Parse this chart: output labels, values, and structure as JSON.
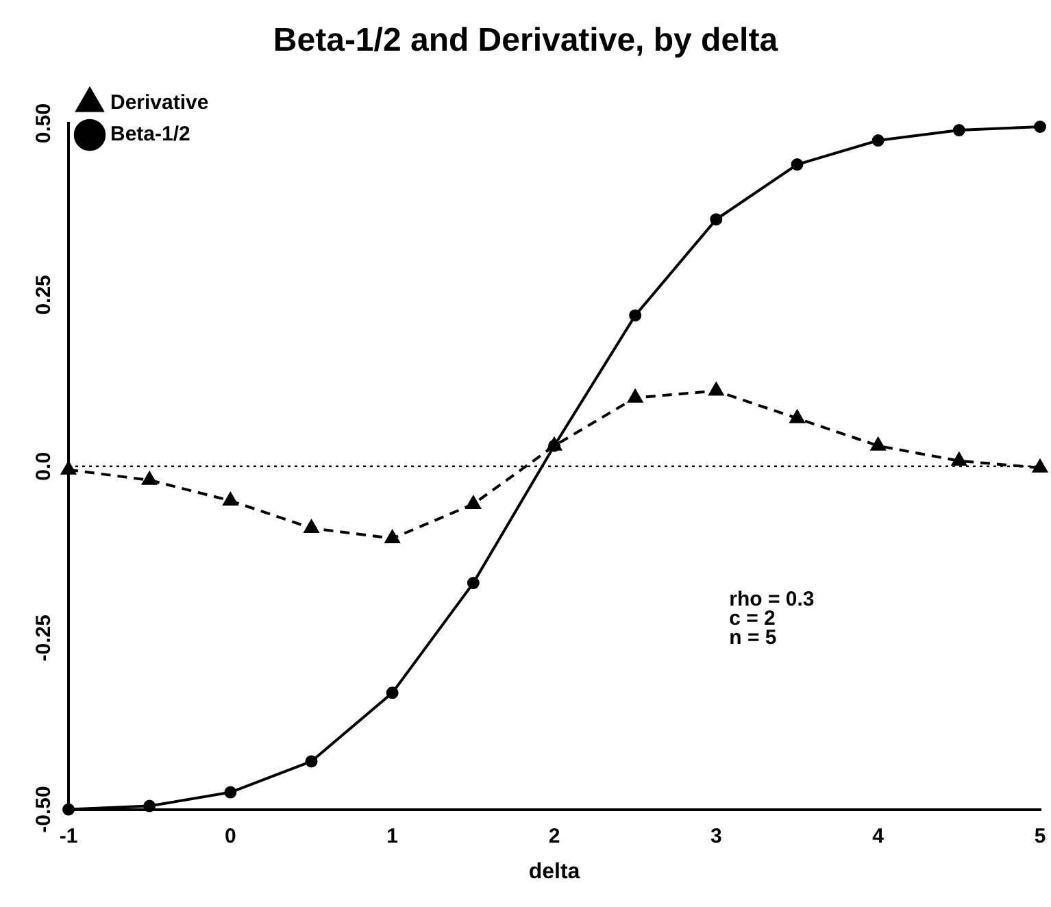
{
  "chart_data": {
    "type": "line",
    "title": "Beta-1/2 and Derivative, by delta",
    "xlabel": "delta",
    "x": [
      -1,
      -0.5,
      0,
      0.5,
      1,
      1.5,
      2,
      2.5,
      3,
      3.5,
      4,
      4.5,
      5
    ],
    "series": [
      {
        "name": "Beta-1/2",
        "color": "#000000",
        "marker": "circle",
        "line_style": "solid",
        "values": [
          -0.5,
          -0.495,
          -0.475,
          -0.43,
          -0.33,
          -0.17,
          0.03,
          0.22,
          0.36,
          0.44,
          0.475,
          0.49,
          0.495
        ]
      },
      {
        "name": "Derivative",
        "color": "#000000",
        "marker": "triangle",
        "line_style": "dashed",
        "values": [
          -0.005,
          -0.02,
          -0.05,
          -0.09,
          -0.105,
          -0.055,
          0.03,
          0.1,
          0.11,
          0.07,
          0.03,
          0.008,
          -0.002
        ]
      }
    ],
    "xlim": [
      -1,
      5
    ],
    "xticks": [
      -1,
      0,
      1,
      2,
      3,
      4,
      5
    ],
    "ylim": [
      -0.5,
      0.5
    ],
    "yticks": [
      {
        "value": -0.5,
        "label": "-0.50"
      },
      -0.25,
      {
        "value": 0,
        "label": "0.0"
      },
      0.25,
      {
        "value": 0.5,
        "label": "0.50"
      }
    ],
    "ref_lines": [
      {
        "axis": "y",
        "value": 0,
        "line_style": "dotted",
        "color": "#000000"
      }
    ],
    "annotations": [
      "rho = 0.3\nc = 2\nn = 5"
    ],
    "legend": "top left",
    "grid": false
  }
}
